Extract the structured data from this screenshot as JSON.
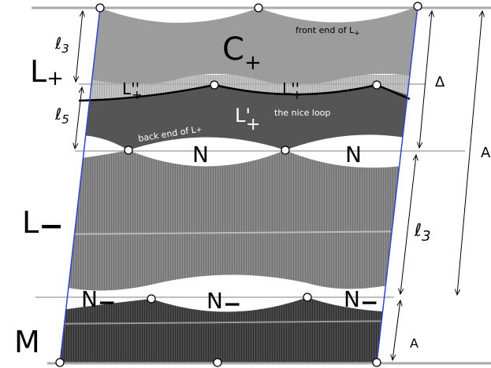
{
  "region_labels": [
    {
      "text": "C",
      "sub": "+"
    },
    {
      "text": "L",
      "sub": "+"
    },
    {
      "text": "L''",
      "sub": "+"
    },
    {
      "text": "L''",
      "sub": "+"
    },
    {
      "text": "L'",
      "sub": "+"
    },
    {
      "text": "N"
    },
    {
      "text": "N"
    },
    {
      "text": "L",
      "sub": "−"
    },
    {
      "text": "N",
      "sub": "−"
    },
    {
      "text": "N",
      "sub": "−"
    },
    {
      "text": "N",
      "sub": "−"
    },
    {
      "text": "M"
    }
  ],
  "notes": [
    {
      "text": "front end of L",
      "sub": "+"
    },
    {
      "text": "the nice loop"
    },
    {
      "text": "back end of L",
      "sub": "+"
    }
  ],
  "dimensions": [
    {
      "text": "ℓ",
      "sub": "3"
    },
    {
      "text": "ℓ",
      "sub": "5"
    },
    {
      "text": "Δ"
    },
    {
      "text": "A"
    },
    {
      "text": "ℓ",
      "sub": "3"
    },
    {
      "text": "A"
    }
  ]
}
